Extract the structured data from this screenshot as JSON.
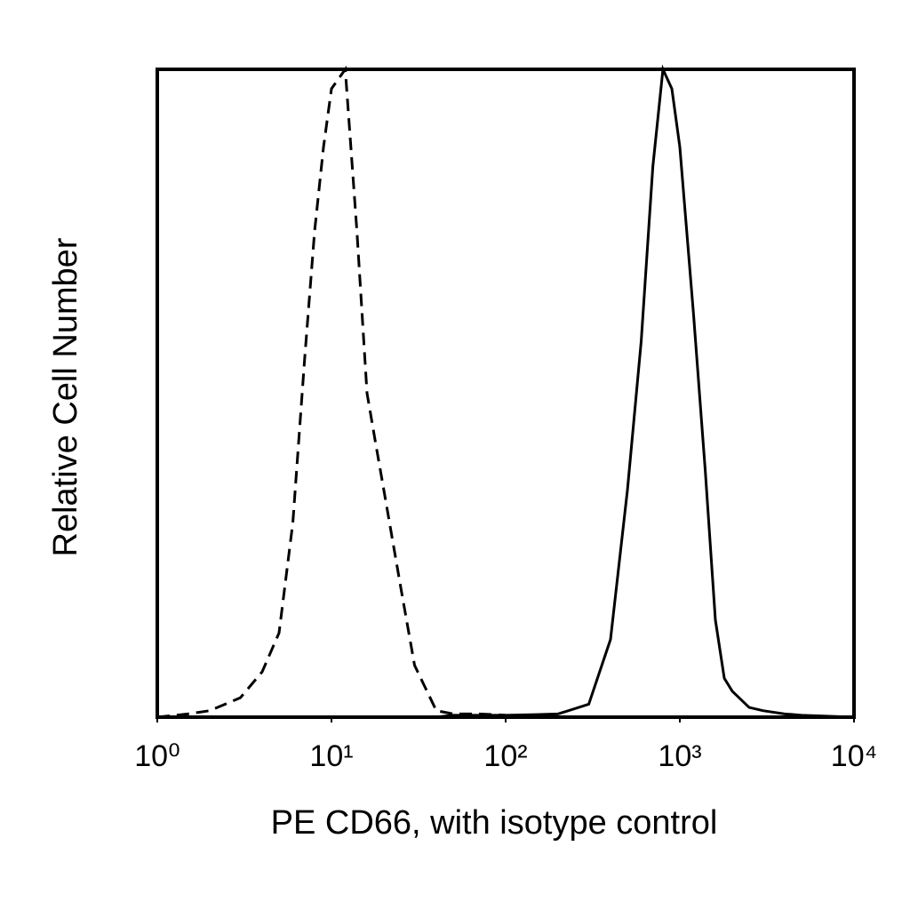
{
  "chart_data": {
    "type": "line",
    "x_label": "PE CD66, with isotype control",
    "y_label": "Relative Cell Number",
    "log_x": true,
    "xlim": [
      1,
      10000
    ],
    "ylim": [
      0,
      100
    ],
    "xticks": [
      {
        "value": 1,
        "label": "10⁰"
      },
      {
        "value": 10,
        "label": "10¹"
      },
      {
        "value": 100,
        "label": "10²"
      },
      {
        "value": 1000,
        "label": "10³"
      },
      {
        "value": 10000,
        "label": "10⁴"
      }
    ],
    "x": [
      1,
      1.5,
      2,
      3,
      4,
      5,
      6,
      7,
      8,
      9,
      10,
      12,
      14,
      16,
      18,
      20,
      25,
      30,
      40,
      50,
      70,
      100,
      150,
      200,
      300,
      400,
      500,
      600,
      700,
      800,
      900,
      1000,
      1200,
      1400,
      1600,
      1800,
      2000,
      2500,
      3000,
      4000,
      5000,
      10000
    ],
    "series": [
      {
        "name": "isotype control",
        "color": "#000000",
        "dashed": true,
        "values": [
          0,
          0.5,
          1,
          3,
          7,
          13,
          30,
          55,
          75,
          88,
          97,
          100,
          75,
          50,
          42,
          35,
          20,
          8,
          1,
          0.5,
          0.5,
          0.3,
          0.2,
          0,
          0,
          0,
          0,
          0,
          0,
          0,
          0,
          0,
          0,
          0,
          0,
          0,
          0,
          0,
          0,
          0,
          0,
          0
        ]
      },
      {
        "name": "PE CD66",
        "color": "#000000",
        "dashed": false,
        "values": [
          0,
          0,
          0,
          0,
          0,
          0,
          0,
          0,
          0,
          0,
          0,
          0,
          0,
          0,
          0,
          0,
          0,
          0,
          0,
          0.3,
          0.3,
          0.3,
          0.4,
          0.5,
          2,
          12,
          35,
          58,
          85,
          100,
          97,
          88,
          62,
          38,
          15,
          6,
          4,
          1.5,
          1,
          0.5,
          0.3,
          0
        ]
      }
    ]
  }
}
